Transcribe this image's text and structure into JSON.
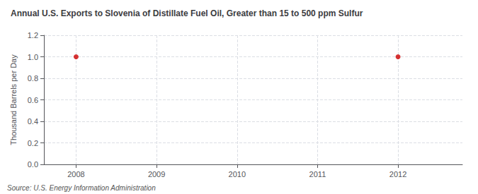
{
  "chart_data": {
    "type": "scatter",
    "title": "Annual U.S. Exports to Slovenia of Distillate Fuel Oil, Greater than 15 to 500 ppm Sulfur",
    "ylabel": "Thousand Barrels per Day",
    "source": "Source: U.S. Energy Information Administration",
    "x": [
      2008,
      2012
    ],
    "values": [
      1.0,
      1.0
    ],
    "color": "#CC0000",
    "marker": "circle",
    "xlim": [
      2007.6,
      2012.8
    ],
    "xticks": [
      2008,
      2009,
      2010,
      2011,
      2012
    ],
    "ylim": [
      0.0,
      1.2
    ],
    "yticks": [
      {
        "value": 0.0,
        "label": "0.0"
      },
      0.2,
      0.4,
      0.6,
      0.8,
      {
        "value": 1.0,
        "label": "1.0"
      },
      1.2
    ],
    "grid": true
  }
}
